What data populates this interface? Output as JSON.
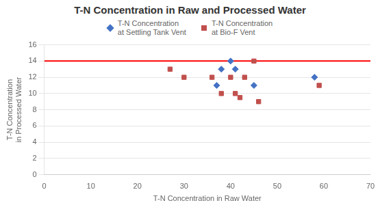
{
  "chart_data": {
    "type": "scatter",
    "title": "T-N Concentration in Raw and Processed Water",
    "xlabel": "T-N Concentration in Raw Water",
    "ylabel": "T-N Concentration\nin Processed Water",
    "xlim": [
      0,
      70
    ],
    "xticks": [
      0,
      10,
      20,
      30,
      40,
      50,
      60,
      70
    ],
    "ylim": [
      0,
      16
    ],
    "yticks": [
      0,
      2,
      4,
      6,
      8,
      10,
      12,
      14,
      16
    ],
    "grid": "y",
    "legend": "top",
    "series": [
      {
        "name": "T-N Concentration\nat Settling Tank Vent",
        "color": "#4472C4",
        "marker": "diamond",
        "x": [
          38,
          40,
          41,
          37,
          45,
          58
        ],
        "values": [
          13,
          14,
          13,
          11,
          11,
          12
        ]
      },
      {
        "name": "T-N Concentration\nat Bio-F Vent",
        "color": "#C0504D",
        "marker": "square",
        "x": [
          27,
          30,
          36,
          38,
          40,
          41,
          42,
          43,
          45,
          46,
          59
        ],
        "values": [
          13,
          12,
          12,
          10,
          12,
          10,
          9.5,
          12,
          14,
          9,
          11
        ]
      }
    ],
    "hline": {
      "y": 14,
      "color": "#ff0000"
    }
  }
}
